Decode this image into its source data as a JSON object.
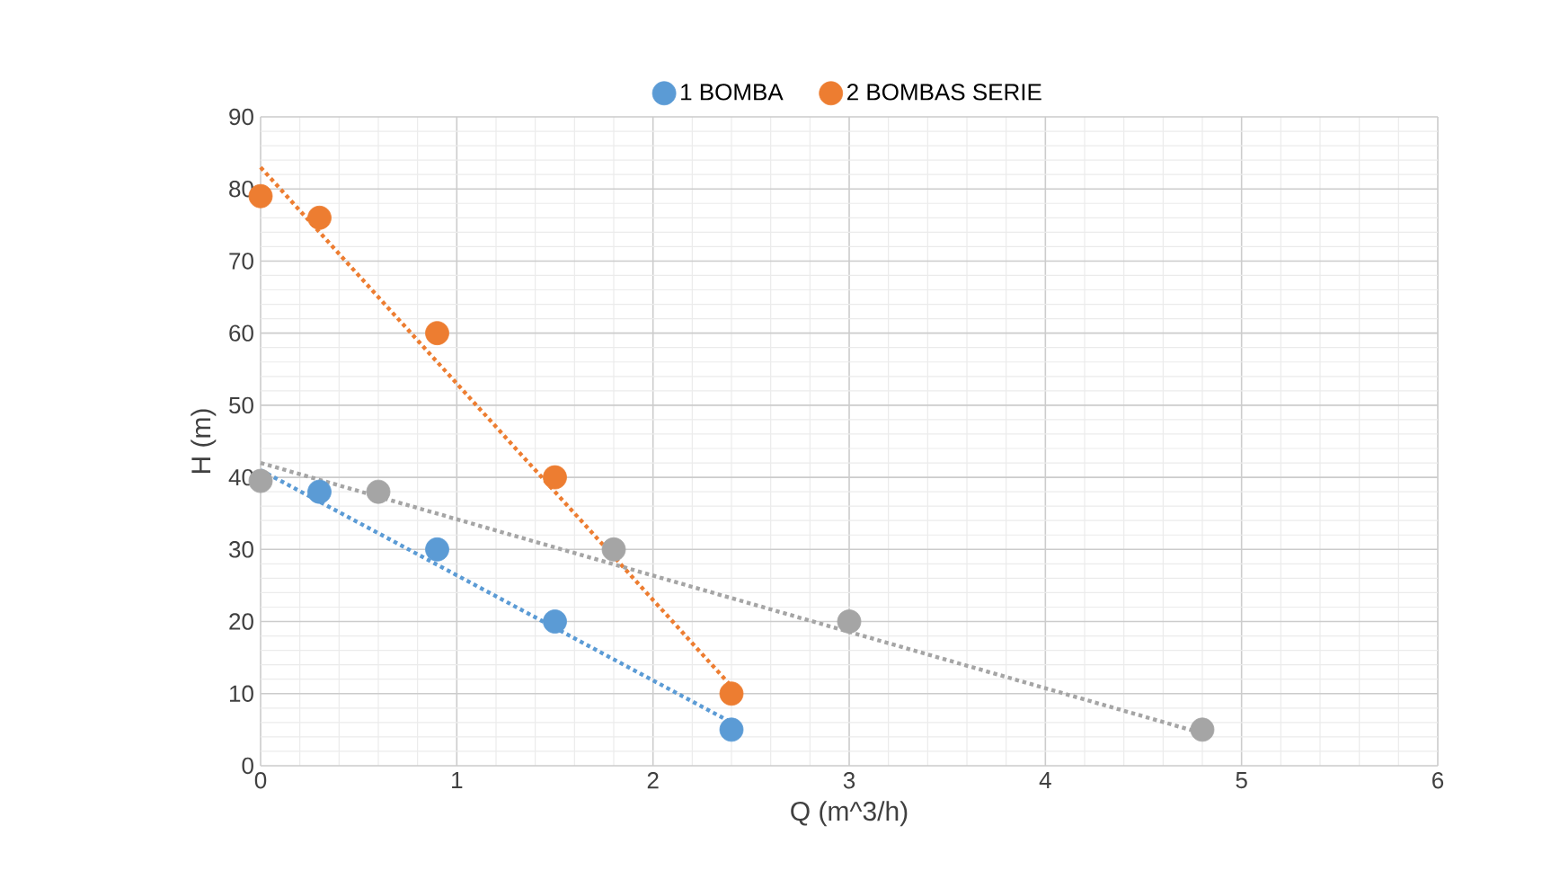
{
  "chart_data": {
    "type": "scatter",
    "xlabel": "Q (m^3/h)",
    "ylabel": "H (m)",
    "xlim": [
      0,
      6
    ],
    "xticks": [
      0,
      1,
      2,
      3,
      4,
      5,
      6
    ],
    "ylim": [
      0,
      90
    ],
    "yticks": [
      0,
      10,
      20,
      30,
      40,
      50,
      60,
      70,
      80,
      90
    ],
    "grid": true,
    "legend": "top",
    "series": [
      {
        "name": "1 BOMBA",
        "marker": "circle",
        "color": "#5b9bd5",
        "x": [
          0.3,
          0.9,
          1.5,
          2.4
        ],
        "values": [
          38,
          30,
          20,
          5
        ]
      },
      {
        "name": "2 BOMBAS SERIE",
        "marker": "circle",
        "color": "#ed7d31",
        "x": [
          0,
          0.3,
          0.9,
          1.5,
          2.4
        ],
        "values": [
          79,
          76,
          60,
          40,
          10
        ]
      },
      {
        "marker": "circle",
        "color": "#a5a5a5",
        "x": [
          0,
          0.6,
          1.8,
          3,
          4.8
        ],
        "values": [
          39.5,
          38,
          30,
          20,
          5
        ]
      },
      {
        "type": "line",
        "marker": "none",
        "line_style": "dotted",
        "color": "#5b9bd5",
        "x": [
          0,
          2.4
        ],
        "values": [
          41,
          6
        ]
      },
      {
        "type": "line",
        "marker": "none",
        "line_style": "dotted",
        "color": "#ed7d31",
        "x": [
          0,
          2.4
        ],
        "values": [
          83,
          11
        ]
      },
      {
        "type": "line",
        "marker": "none",
        "line_style": "dotted",
        "color": "#a5a5a5",
        "x": [
          0,
          4.8
        ],
        "values": [
          42,
          4.5
        ]
      }
    ]
  }
}
